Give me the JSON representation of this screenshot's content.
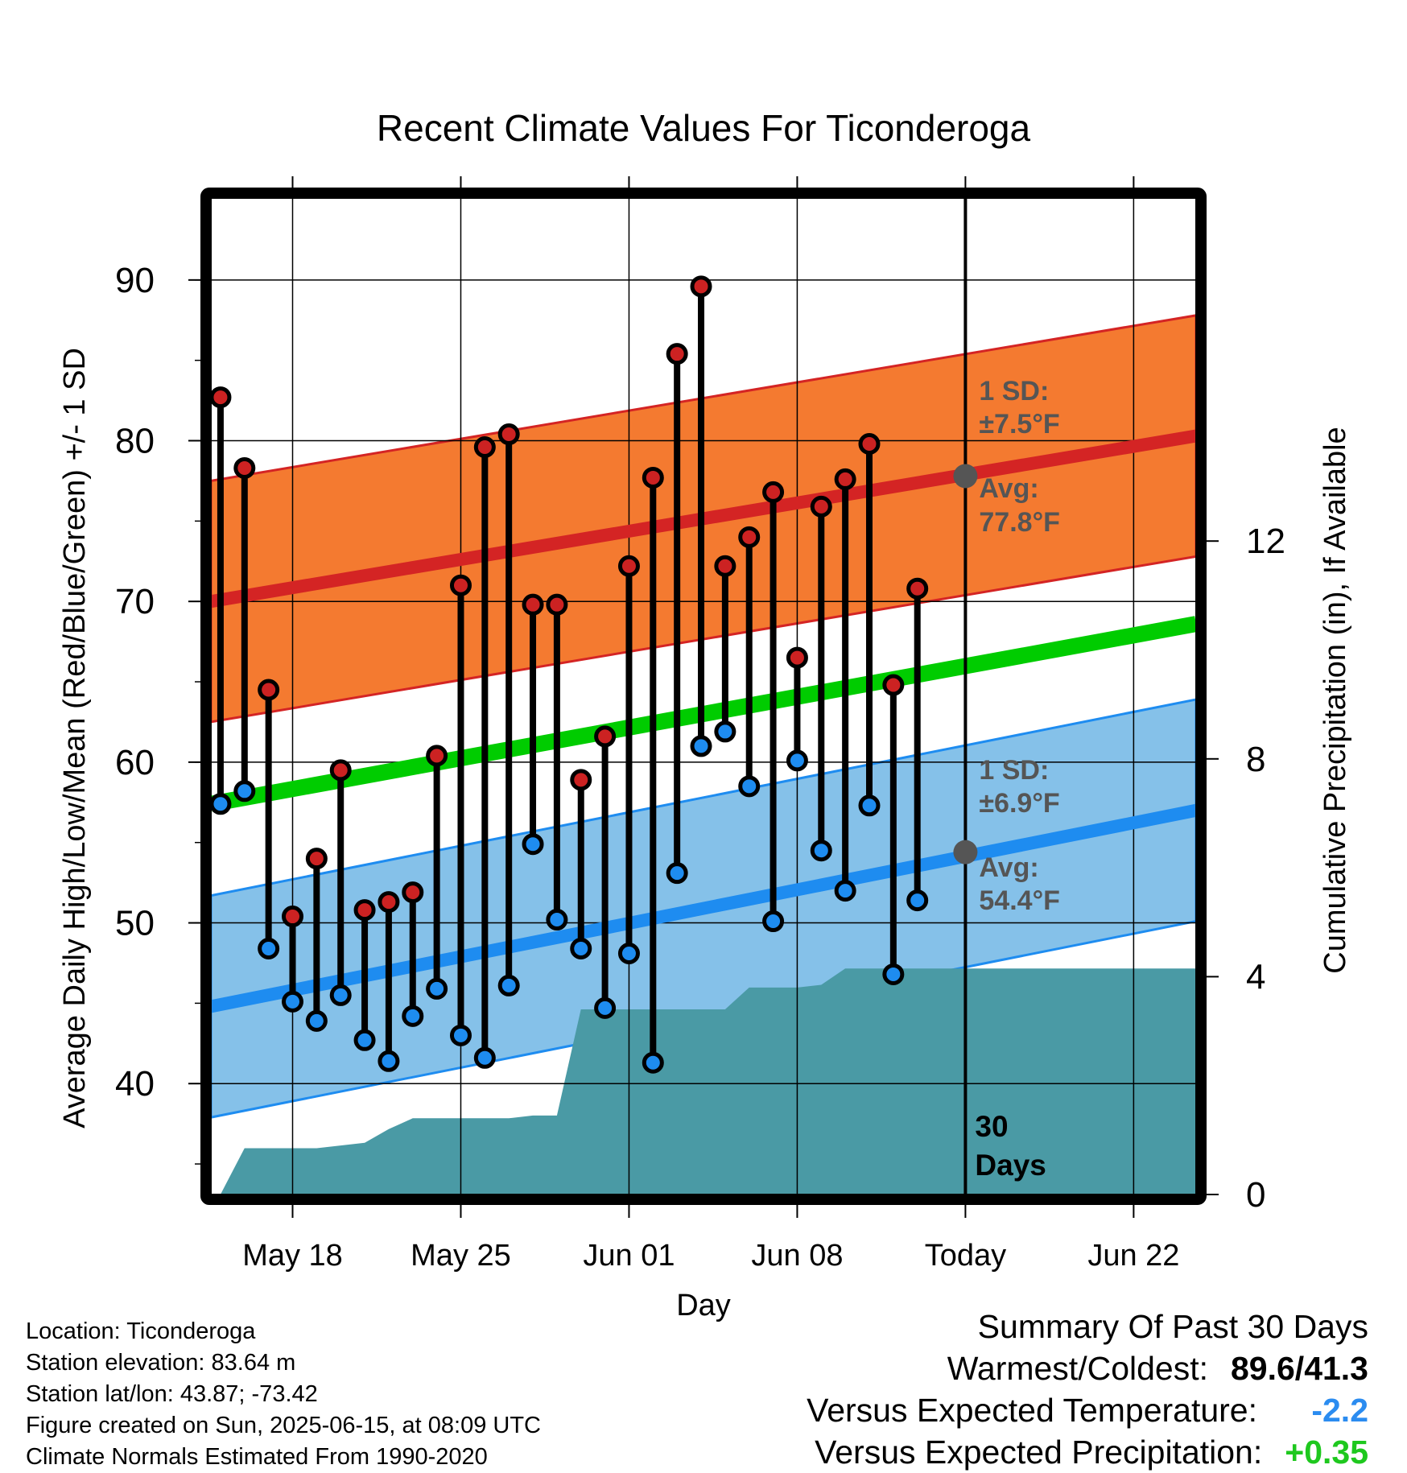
{
  "chart_data": {
    "type": "line",
    "title": "Recent Climate Values For Ticonderoga",
    "xlabel": "Day",
    "ylabel": "Average Daily High/Low/Mean (Red/Blue/Green) +/- 1 SD",
    "ylabel_right": "Cumulative Precipitation (in), If Available",
    "x_ticks": [
      "May 18",
      "May 25",
      "Jun 01",
      "Jun 08",
      "Today",
      "Jun 22"
    ],
    "x_tick_day_index": [
      4,
      11,
      18,
      25,
      32,
      39
    ],
    "x_range_days": [
      0.6,
      41.6
    ],
    "ylim": [
      33.1,
      95.1
    ],
    "y_ticks": [
      40,
      50,
      60,
      70,
      80,
      90
    ],
    "y2lim": [
      0,
      18.3
    ],
    "y2_ticks": [
      0,
      4,
      8,
      12
    ],
    "day_index": [
      1,
      2,
      3,
      4,
      5,
      6,
      7,
      8,
      9,
      10,
      11,
      12,
      13,
      14,
      15,
      16,
      17,
      18,
      19,
      20,
      21,
      22,
      23,
      24,
      25,
      26,
      27,
      28,
      29,
      30
    ],
    "series": [
      {
        "name": "High",
        "color": "#cc2222",
        "values": [
          82.7,
          78.3,
          64.5,
          50.4,
          54.0,
          59.5,
          50.8,
          51.3,
          51.9,
          60.4,
          71.0,
          79.6,
          80.4,
          69.8,
          69.8,
          58.9,
          61.6,
          72.2,
          77.7,
          85.4,
          89.6,
          72.2,
          74.0,
          76.8,
          66.5,
          75.9,
          77.6,
          79.8,
          64.8,
          70.8
        ]
      },
      {
        "name": "Low",
        "color": "#1e8cf0",
        "values": [
          57.4,
          58.2,
          48.4,
          45.1,
          43.9,
          45.5,
          42.7,
          41.4,
          44.2,
          45.9,
          43.0,
          41.6,
          46.1,
          54.9,
          50.2,
          48.4,
          44.7,
          48.1,
          41.3,
          53.1,
          61.0,
          61.9,
          58.5,
          50.1,
          60.1,
          54.5,
          52.0,
          57.3,
          46.8,
          51.4
        ]
      }
    ],
    "normal_high": {
      "start": 70.0,
      "end": 80.3,
      "sd": 7.5,
      "color": "#d42424",
      "band_color": "#f47a30"
    },
    "normal_low": {
      "start": 44.8,
      "end": 57.0,
      "sd": 6.9,
      "color": "#1e8cf0",
      "band_color": "#85c1e9"
    },
    "normal_mean": {
      "start": 57.4,
      "end": 68.6,
      "color": "#00cc00"
    },
    "today": {
      "day_index": 32,
      "avg_high": 77.8,
      "avg_low": 54.4,
      "high_sd_label": "1 SD:",
      "high_sd_value": "±7.5°F",
      "high_avg_label": "Avg:",
      "high_avg_value": "77.8°F",
      "low_sd_label": "1 SD:",
      "low_sd_value": "±6.9°F",
      "low_avg_label": "Avg:",
      "low_avg_value": "54.4°F",
      "days_label_1": "30",
      "days_label_2": "Days"
    },
    "precip": {
      "color": "#4a9aa5",
      "x": [
        1.0,
        2.0,
        5.0,
        7.0,
        8.0,
        9.0,
        10.0,
        13.0,
        14.0,
        15.0,
        16.0,
        17.0,
        18.0,
        19.0,
        20.0,
        21.0,
        22.0,
        23.0,
        24.0,
        25.0,
        26.0,
        27.0,
        41.6
      ],
      "values": [
        0.0,
        0.85,
        0.85,
        0.95,
        1.2,
        1.4,
        1.4,
        1.4,
        1.45,
        1.45,
        3.4,
        3.4,
        3.4,
        3.4,
        3.4,
        3.4,
        3.4,
        3.8,
        3.8,
        3.8,
        3.85,
        4.15,
        4.15
      ]
    }
  },
  "info": {
    "location": "Location: Ticonderoga",
    "elevation": "Station elevation: 83.64 m",
    "latlon": "Station lat/lon: 43.87; -73.42",
    "created": "Figure created on Sun, 2025-06-15, at 08:09 UTC",
    "normals": "Climate Normals Estimated From 1990-2020"
  },
  "summary": {
    "title": "Summary Of Past 30 Days",
    "warmest_label": "Warmest/Coldest:",
    "warmest_value": "89.6/41.3",
    "temp_label": "Versus Expected Temperature:",
    "temp_value": "-2.2",
    "precip_label": "Versus Expected Precipitation:",
    "precip_value": "+0.35"
  }
}
